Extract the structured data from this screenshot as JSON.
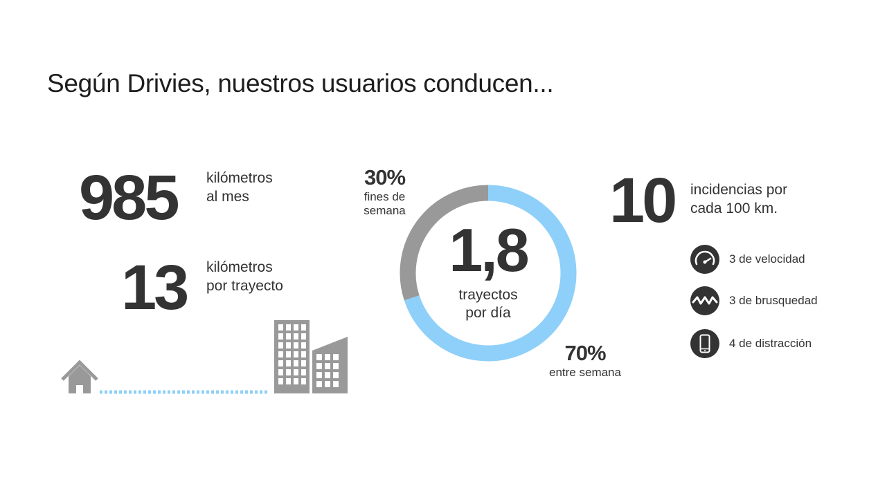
{
  "title": "Según Drivies, nuestros usuarios conducen...",
  "stats": {
    "monthly": {
      "value": "985",
      "line1": "kilómetros",
      "line2": "al mes"
    },
    "per_trip": {
      "value": "13",
      "line1": "kilómetros",
      "line2": "por trayecto"
    },
    "incidents": {
      "value": "10",
      "line1": "incidencias por",
      "line2": "cada 100 km."
    }
  },
  "donut": {
    "center_value": "1,8",
    "center_line1": "trayectos",
    "center_line2": "por día",
    "weekend": {
      "percent": "30%",
      "line1": "fines de",
      "line2": "semana",
      "share": 0.3,
      "color": "#999999"
    },
    "weekday": {
      "percent": "70%",
      "line1": "entre semana",
      "share": 0.7,
      "color": "#8ed0f9"
    }
  },
  "incident_breakdown": [
    {
      "icon": "speedometer-icon",
      "label": "3 de velocidad"
    },
    {
      "icon": "zigzag-icon",
      "label": "3 de brusquedad"
    },
    {
      "icon": "smartphone-icon",
      "label": "4 de distracción"
    }
  ],
  "illustration": {
    "home_icon": "house-icon",
    "office_icon": "buildings-icon",
    "route_color": "#8ed0f9",
    "building_color": "#999999"
  }
}
